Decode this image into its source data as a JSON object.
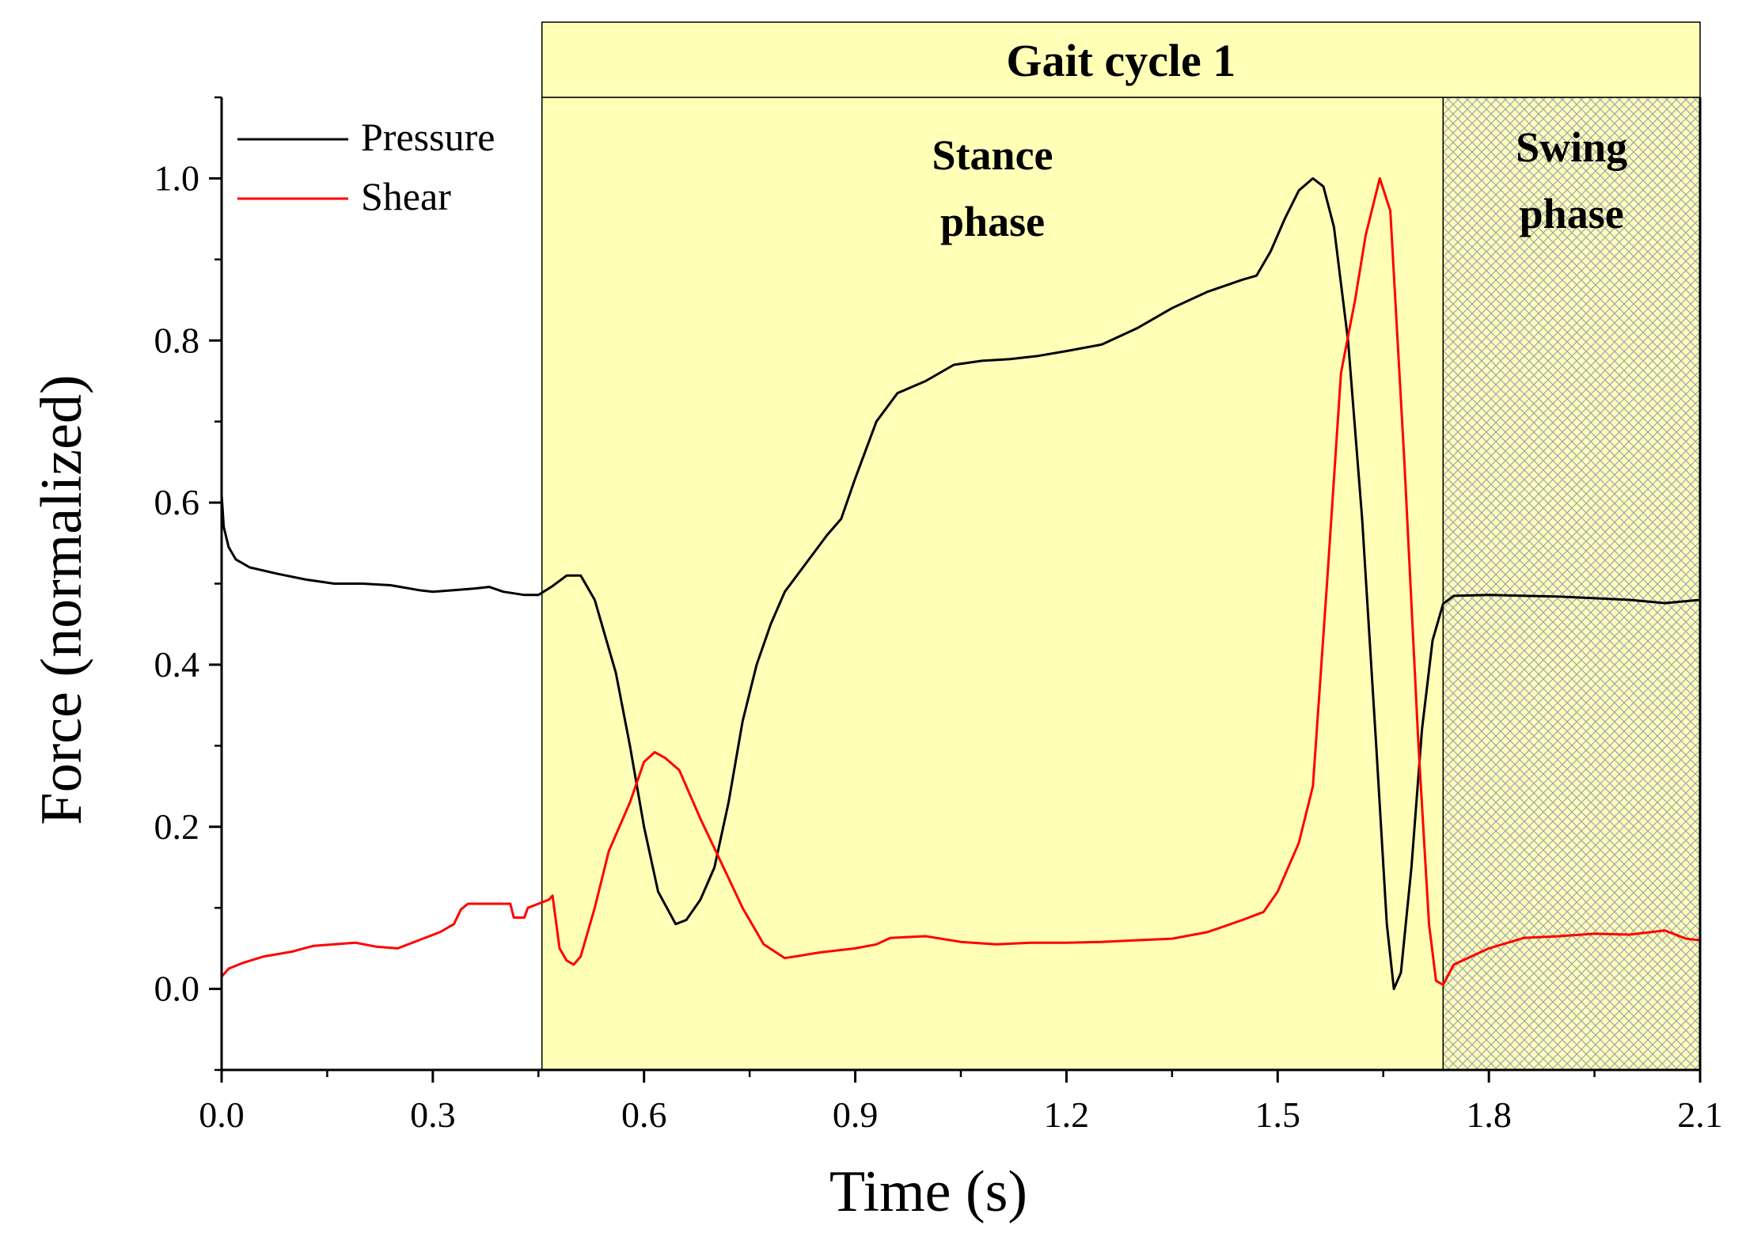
{
  "chart_data": {
    "type": "line",
    "title": "",
    "xlabel": "Time (s)",
    "ylabel": "Force (normalized)",
    "xlim": [
      0.0,
      2.1
    ],
    "ylim": [
      -0.1,
      1.1
    ],
    "x_ticks": [
      0.0,
      0.3,
      0.6,
      0.9,
      1.2,
      1.5,
      1.8,
      2.1
    ],
    "x_tick_labels": [
      "0.0",
      "0.3",
      "0.6",
      "0.9",
      "1.2",
      "1.5",
      "1.8",
      "2.1"
    ],
    "y_ticks": [
      0.0,
      0.2,
      0.4,
      0.6,
      0.8,
      1.0
    ],
    "y_tick_labels": [
      "0.0",
      "0.2",
      "0.4",
      "0.6",
      "0.8",
      "1.0"
    ],
    "grid": false,
    "legend_position": "top-left",
    "series": [
      {
        "name": "Pressure",
        "color": "#000000",
        "points": [
          [
            0.0,
            0.61
          ],
          [
            0.003,
            0.57
          ],
          [
            0.01,
            0.545
          ],
          [
            0.02,
            0.53
          ],
          [
            0.04,
            0.52
          ],
          [
            0.08,
            0.512
          ],
          [
            0.12,
            0.505
          ],
          [
            0.16,
            0.5
          ],
          [
            0.2,
            0.5
          ],
          [
            0.24,
            0.498
          ],
          [
            0.28,
            0.492
          ],
          [
            0.3,
            0.49
          ],
          [
            0.33,
            0.492
          ],
          [
            0.36,
            0.494
          ],
          [
            0.38,
            0.496
          ],
          [
            0.4,
            0.49
          ],
          [
            0.43,
            0.486
          ],
          [
            0.45,
            0.486
          ],
          [
            0.47,
            0.497
          ],
          [
            0.49,
            0.51
          ],
          [
            0.51,
            0.51
          ],
          [
            0.53,
            0.48
          ],
          [
            0.56,
            0.39
          ],
          [
            0.58,
            0.3
          ],
          [
            0.6,
            0.2
          ],
          [
            0.62,
            0.12
          ],
          [
            0.645,
            0.08
          ],
          [
            0.66,
            0.085
          ],
          [
            0.68,
            0.11
          ],
          [
            0.7,
            0.15
          ],
          [
            0.72,
            0.23
          ],
          [
            0.74,
            0.33
          ],
          [
            0.76,
            0.4
          ],
          [
            0.78,
            0.45
          ],
          [
            0.8,
            0.49
          ],
          [
            0.83,
            0.525
          ],
          [
            0.86,
            0.56
          ],
          [
            0.88,
            0.58
          ],
          [
            0.9,
            0.63
          ],
          [
            0.93,
            0.7
          ],
          [
            0.96,
            0.735
          ],
          [
            1.0,
            0.75
          ],
          [
            1.04,
            0.77
          ],
          [
            1.08,
            0.775
          ],
          [
            1.12,
            0.777
          ],
          [
            1.16,
            0.781
          ],
          [
            1.2,
            0.787
          ],
          [
            1.25,
            0.795
          ],
          [
            1.3,
            0.815
          ],
          [
            1.35,
            0.84
          ],
          [
            1.4,
            0.86
          ],
          [
            1.45,
            0.875
          ],
          [
            1.47,
            0.88
          ],
          [
            1.49,
            0.91
          ],
          [
            1.51,
            0.95
          ],
          [
            1.53,
            0.985
          ],
          [
            1.55,
            1.0
          ],
          [
            1.565,
            0.99
          ],
          [
            1.58,
            0.94
          ],
          [
            1.6,
            0.8
          ],
          [
            1.62,
            0.58
          ],
          [
            1.64,
            0.3
          ],
          [
            1.655,
            0.08
          ],
          [
            1.665,
            0.0
          ],
          [
            1.675,
            0.02
          ],
          [
            1.69,
            0.15
          ],
          [
            1.705,
            0.32
          ],
          [
            1.72,
            0.43
          ],
          [
            1.735,
            0.475
          ],
          [
            1.75,
            0.485
          ],
          [
            1.8,
            0.486
          ],
          [
            1.9,
            0.484
          ],
          [
            2.0,
            0.48
          ],
          [
            2.05,
            0.476
          ],
          [
            2.1,
            0.48
          ]
        ]
      },
      {
        "name": "Shear",
        "color": "#ff0000",
        "points": [
          [
            0.0,
            0.015
          ],
          [
            0.01,
            0.025
          ],
          [
            0.03,
            0.032
          ],
          [
            0.06,
            0.04
          ],
          [
            0.1,
            0.046
          ],
          [
            0.13,
            0.053
          ],
          [
            0.16,
            0.055
          ],
          [
            0.19,
            0.057
          ],
          [
            0.22,
            0.052
          ],
          [
            0.25,
            0.05
          ],
          [
            0.28,
            0.06
          ],
          [
            0.31,
            0.07
          ],
          [
            0.33,
            0.08
          ],
          [
            0.34,
            0.098
          ],
          [
            0.35,
            0.105
          ],
          [
            0.38,
            0.105
          ],
          [
            0.41,
            0.105
          ],
          [
            0.415,
            0.088
          ],
          [
            0.43,
            0.088
          ],
          [
            0.435,
            0.1
          ],
          [
            0.45,
            0.105
          ],
          [
            0.465,
            0.11
          ],
          [
            0.47,
            0.115
          ],
          [
            0.48,
            0.05
          ],
          [
            0.49,
            0.035
          ],
          [
            0.5,
            0.03
          ],
          [
            0.51,
            0.04
          ],
          [
            0.53,
            0.1
          ],
          [
            0.55,
            0.17
          ],
          [
            0.58,
            0.23
          ],
          [
            0.6,
            0.28
          ],
          [
            0.615,
            0.292
          ],
          [
            0.63,
            0.285
          ],
          [
            0.65,
            0.27
          ],
          [
            0.68,
            0.21
          ],
          [
            0.71,
            0.155
          ],
          [
            0.74,
            0.1
          ],
          [
            0.77,
            0.055
          ],
          [
            0.8,
            0.038
          ],
          [
            0.85,
            0.045
          ],
          [
            0.9,
            0.05
          ],
          [
            0.93,
            0.055
          ],
          [
            0.95,
            0.063
          ],
          [
            1.0,
            0.065
          ],
          [
            1.05,
            0.058
          ],
          [
            1.1,
            0.055
          ],
          [
            1.15,
            0.057
          ],
          [
            1.2,
            0.057
          ],
          [
            1.25,
            0.058
          ],
          [
            1.3,
            0.06
          ],
          [
            1.35,
            0.062
          ],
          [
            1.4,
            0.07
          ],
          [
            1.45,
            0.085
          ],
          [
            1.48,
            0.095
          ],
          [
            1.5,
            0.12
          ],
          [
            1.53,
            0.18
          ],
          [
            1.55,
            0.25
          ],
          [
            1.57,
            0.5
          ],
          [
            1.59,
            0.76
          ],
          [
            1.61,
            0.85
          ],
          [
            1.625,
            0.93
          ],
          [
            1.645,
            1.0
          ],
          [
            1.66,
            0.96
          ],
          [
            1.68,
            0.65
          ],
          [
            1.7,
            0.3
          ],
          [
            1.715,
            0.08
          ],
          [
            1.725,
            0.01
          ],
          [
            1.735,
            0.005
          ],
          [
            1.75,
            0.03
          ],
          [
            1.8,
            0.05
          ],
          [
            1.85,
            0.063
          ],
          [
            1.9,
            0.065
          ],
          [
            1.95,
            0.068
          ],
          [
            2.0,
            0.067
          ],
          [
            2.05,
            0.072
          ],
          [
            2.08,
            0.062
          ],
          [
            2.1,
            0.06
          ]
        ]
      }
    ],
    "regions": [
      {
        "name": "Stance phase",
        "label_lines": [
          "Stance",
          "phase"
        ],
        "x_start": 0.455,
        "x_end": 1.735,
        "color": "#ffffb7",
        "pattern": "none"
      },
      {
        "name": "Swing phase",
        "label_lines": [
          "Swing",
          "phase"
        ],
        "x_start": 1.735,
        "x_end": 2.1,
        "color": "#ffffb7",
        "pattern": "crosshatch"
      }
    ],
    "header_band": {
      "label": "Gait cycle 1",
      "x_start": 0.455,
      "x_end": 2.1,
      "color": "#ffffb7"
    }
  }
}
